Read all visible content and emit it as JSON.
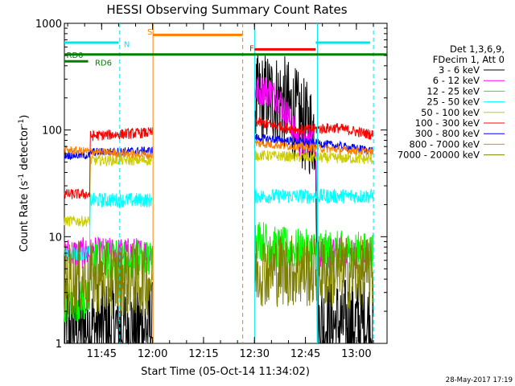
{
  "chart_data": {
    "type": "line",
    "title": "HESSI Observing Summary Count Rates",
    "xlabel": "Start Time (05-Oct-14 11:34:02)",
    "ylabel_main": "Count Rate (s",
    "ylabel_sup1": "-1",
    "ylabel_mid": " detector",
    "ylabel_sup2": "-1",
    "ylabel_end": ")",
    "yscale": "log",
    "ylim": [
      1,
      1000
    ],
    "xlim_minutes": [
      0,
      95
    ],
    "x_ticks": [
      {
        "label": "11:45",
        "minutes": 10.97
      },
      {
        "label": "12:00",
        "minutes": 25.97
      },
      {
        "label": "12:15",
        "minutes": 40.97
      },
      {
        "label": "12:30",
        "minutes": 55.97
      },
      {
        "label": "12:45",
        "minutes": 70.97
      },
      {
        "label": "13:00",
        "minutes": 85.97
      }
    ],
    "y_ticks": [
      {
        "label": "1",
        "value": 1
      },
      {
        "label": "10",
        "value": 10
      },
      {
        "label": "100",
        "value": 100
      },
      {
        "label": "1000",
        "value": 1000
      }
    ],
    "legend_header": [
      "Det 1,3,6,9,",
      "FDecim 1, Att 0"
    ],
    "date_stamp": "28-May-2017 17:19",
    "flags": [
      {
        "name": "S",
        "label": "S",
        "color": "#ff8000",
        "start": 26,
        "end": 52.5,
        "level": 780,
        "label_at": 24.4,
        "label_level": 840
      },
      {
        "name": "F",
        "label": "F",
        "color": "#ff0000",
        "start": 56,
        "end": 74,
        "level": 570,
        "label_at": 54.5,
        "label_level": 590
      },
      {
        "name": "N",
        "label": "N",
        "color": "#00e5ee",
        "start": 0,
        "end": 16,
        "level": 660,
        "label_at": 17.5,
        "label_level": 640
      },
      {
        "name": "N2",
        "label": "",
        "color": "#00e5ee",
        "start": 74,
        "end": 90,
        "level": 660,
        "label_at": 0,
        "label_level": 0
      },
      {
        "name": "RD0",
        "label": "RD0",
        "color": "#008000",
        "start": 0,
        "end": 95,
        "level": 510,
        "label_at": 0.6,
        "label_level": 510
      },
      {
        "name": "RD6",
        "label": "RD6",
        "color": "#008000",
        "start": 0,
        "end": 7,
        "level": 440,
        "label_at": 9,
        "label_level": 430
      }
    ],
    "vlines": [
      {
        "minutes": 16.3,
        "color": "#00e5ee",
        "dash": true
      },
      {
        "minutes": 26.1,
        "color": "#ff8000",
        "dash": false
      },
      {
        "minutes": 52.5,
        "color": "#ff8000",
        "dash": true
      },
      {
        "minutes": 56.0,
        "color": "#00e5ee",
        "dash": false
      },
      {
        "minutes": 74.5,
        "color": "#00e5ee",
        "dash": false
      },
      {
        "minutes": 91.0,
        "color": "#00e5ee",
        "dash": true
      }
    ],
    "segments": [
      [
        0,
        26
      ],
      [
        56,
        91
      ]
    ],
    "series": [
      {
        "name": "3 - 6 keV",
        "color": "#000000",
        "points": [
          [
            0,
            1.4
          ],
          [
            26,
            1.4
          ],
          [
            56,
            180
          ],
          [
            60,
            200
          ],
          [
            64,
            190
          ],
          [
            68,
            140
          ],
          [
            71,
            105
          ],
          [
            74,
            100
          ],
          [
            74.5,
            1.5
          ],
          [
            91,
            1.5
          ]
        ],
        "noise": 0.45
      },
      {
        "name": "6 - 12 keV",
        "color": "#ff00ff",
        "points": [
          [
            0,
            7
          ],
          [
            26,
            7
          ],
          [
            56,
            230
          ],
          [
            59,
            240
          ],
          [
            63,
            200
          ],
          [
            66,
            130
          ],
          [
            69,
            78
          ],
          [
            71,
            73
          ],
          [
            73,
            82
          ],
          [
            74,
            80
          ],
          [
            74.5,
            7
          ],
          [
            91,
            7
          ]
        ],
        "noise": 0.15
      },
      {
        "name": "12 - 25 keV",
        "color": "#00ff00",
        "points": [
          [
            0,
            2.5
          ],
          [
            7.5,
            2.5
          ],
          [
            7.6,
            6
          ],
          [
            26,
            6
          ],
          [
            56,
            10
          ],
          [
            62,
            8
          ],
          [
            70,
            7.5
          ],
          [
            91,
            7
          ]
        ],
        "noise": 0.2
      },
      {
        "name": "25 - 50 keV",
        "color": "#00ffff",
        "points": [
          [
            0,
            7
          ],
          [
            7.5,
            7
          ],
          [
            7.6,
            22
          ],
          [
            26,
            22
          ],
          [
            56,
            24
          ],
          [
            91,
            24
          ]
        ],
        "noise": 0.07
      },
      {
        "name": "50 - 100 keV",
        "color": "#cccc00",
        "points": [
          [
            0,
            14
          ],
          [
            7.5,
            14
          ],
          [
            7.6,
            52
          ],
          [
            26,
            52
          ],
          [
            56,
            58
          ],
          [
            91,
            53
          ]
        ],
        "noise": 0.05
      },
      {
        "name": "100 - 300 keV",
        "color": "#ff0000",
        "points": [
          [
            0,
            25
          ],
          [
            7.5,
            25
          ],
          [
            7.6,
            88
          ],
          [
            26,
            95
          ],
          [
            56,
            120
          ],
          [
            62,
            110
          ],
          [
            70,
            100
          ],
          [
            80,
            105
          ],
          [
            91,
            90
          ]
        ],
        "noise": 0.05
      },
      {
        "name": "300 - 800 keV",
        "color": "#0000ff",
        "points": [
          [
            0,
            58
          ],
          [
            7.5,
            58
          ],
          [
            7.6,
            62
          ],
          [
            26,
            64
          ],
          [
            56,
            85
          ],
          [
            65,
            80
          ],
          [
            75,
            75
          ],
          [
            91,
            64
          ]
        ],
        "noise": 0.04
      },
      {
        "name": "800 - 7000 keV",
        "color": "#ff8000",
        "points": [
          [
            0,
            65
          ],
          [
            26,
            58
          ],
          [
            56,
            75
          ],
          [
            91,
            62
          ]
        ],
        "noise": 0.04
      },
      {
        "name": "7000 - 20000 keV",
        "color": "#808000",
        "points": [
          [
            0,
            4
          ],
          [
            26,
            4
          ],
          [
            56,
            5
          ],
          [
            91,
            4.5
          ]
        ],
        "noise": 0.35
      }
    ]
  }
}
